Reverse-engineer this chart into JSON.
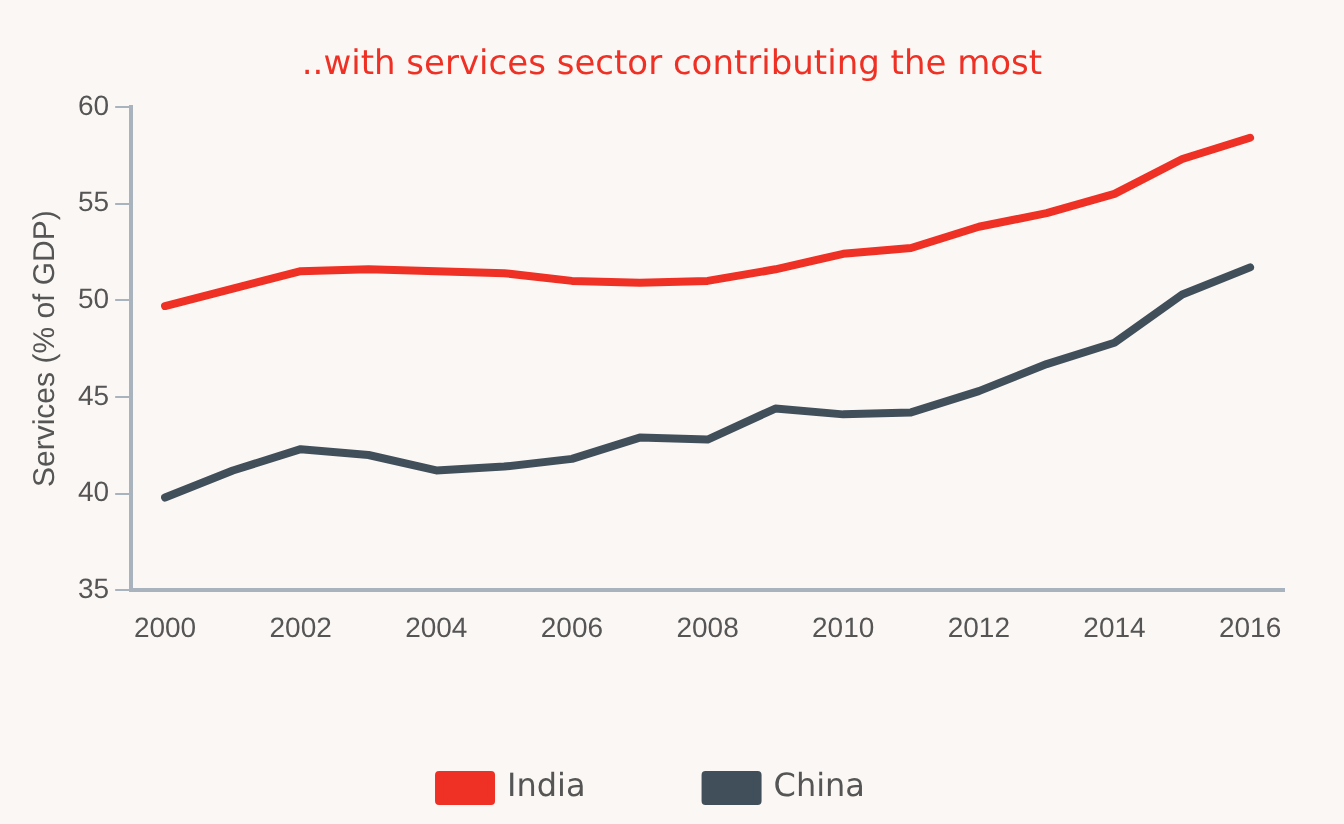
{
  "chart_data": {
    "type": "line",
    "title": "..with services sector contributing the most",
    "ylabel": "Services (% of GDP)",
    "categories": [
      "2000",
      null,
      "2002",
      null,
      "2004",
      null,
      "2006",
      null,
      "2008",
      null,
      "2010",
      null,
      "2012",
      null,
      "2014",
      null,
      "2016"
    ],
    "series": [
      {
        "name": "India",
        "color": "#ee3124",
        "values": [
          49.7,
          50.6,
          51.5,
          51.6,
          51.5,
          51.4,
          51.0,
          50.9,
          51.0,
          51.6,
          52.4,
          52.7,
          53.8,
          54.5,
          55.5,
          57.3,
          58.4
        ]
      },
      {
        "name": "China",
        "color": "#414f5a",
        "values": [
          39.8,
          41.2,
          42.3,
          42.0,
          41.2,
          41.4,
          41.8,
          42.9,
          42.8,
          44.4,
          44.1,
          44.2,
          45.3,
          46.7,
          47.8,
          50.3,
          51.7
        ]
      }
    ],
    "ylim": [
      35,
      60
    ],
    "yticks": [
      35,
      40,
      45,
      50,
      55,
      60
    ],
    "grid": false,
    "legend": "bottom",
    "marker": "none",
    "line_style": "solid"
  }
}
